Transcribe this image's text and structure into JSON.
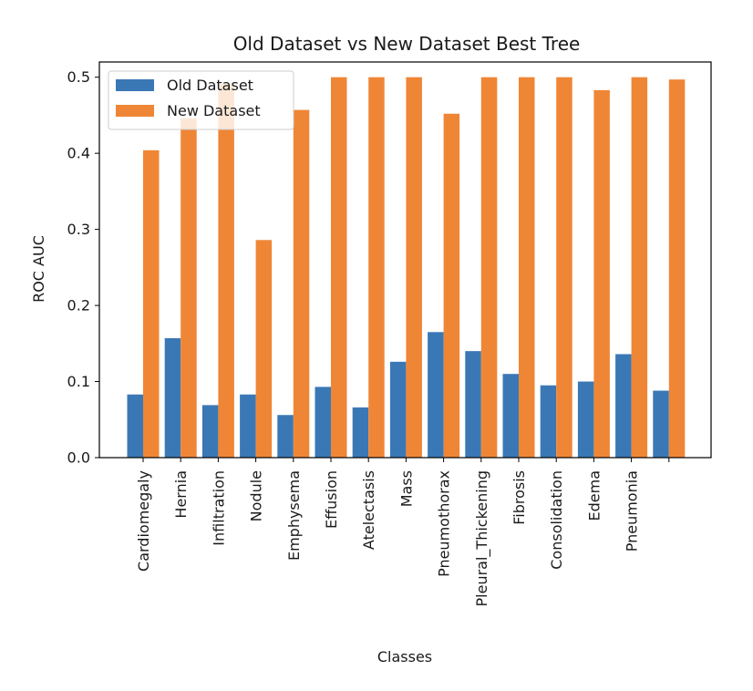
{
  "chart_data": {
    "type": "bar",
    "title": "Old Dataset vs New Dataset Best Tree",
    "xlabel": "Classes",
    "ylabel": "ROC AUC",
    "ylim": [
      0.0,
      0.52
    ],
    "yticks": [
      "0.0",
      "0.1",
      "0.2",
      "0.3",
      "0.4",
      "0.5"
    ],
    "yticks_values": [
      0.0,
      0.1,
      0.2,
      0.3,
      0.4,
      0.5
    ],
    "categories": [
      "Cardiomegaly",
      "Hernia",
      "Infiltration",
      "Nodule",
      "Emphysema",
      "Effusion",
      "Atelectasis",
      "Mass",
      "Pneumothorax",
      "Pleural_Thickening",
      "Fibrosis",
      "Consolidation",
      "Edema",
      "Pneumonia",
      ""
    ],
    "series": [
      {
        "name": "Old Dataset",
        "color": "#3a78b5",
        "values": [
          0.083,
          0.157,
          0.069,
          0.083,
          0.056,
          0.093,
          0.066,
          0.126,
          0.165,
          0.14,
          0.11,
          0.095,
          0.1,
          0.136,
          0.088
        ]
      },
      {
        "name": "New Dataset",
        "color": "#ef8636",
        "values": [
          0.404,
          0.446,
          0.491,
          0.286,
          0.457,
          0.5,
          0.5,
          0.5,
          0.452,
          0.5,
          0.5,
          0.5,
          0.483,
          0.5,
          0.497
        ]
      }
    ],
    "legend": "top-left",
    "grid": false
  }
}
